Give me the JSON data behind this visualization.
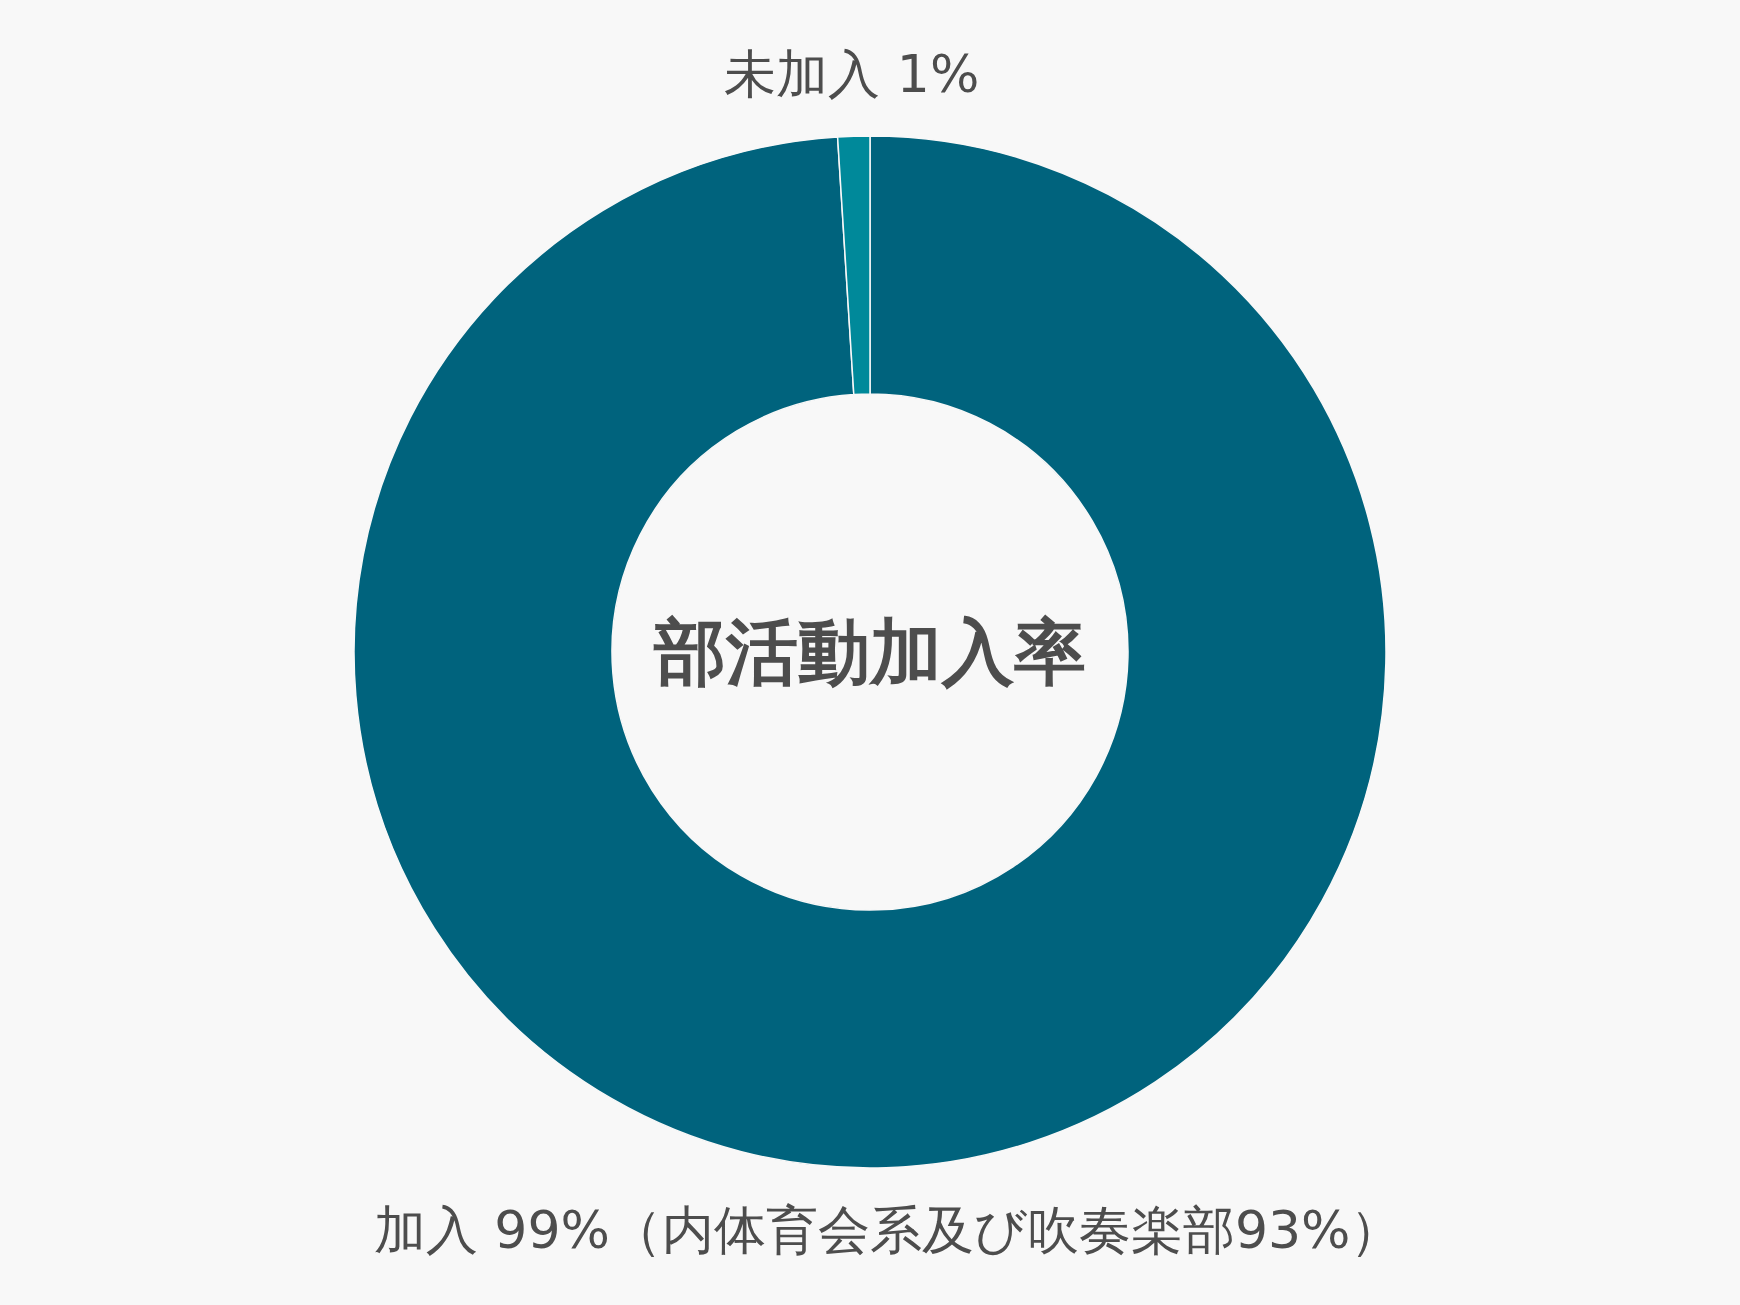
{
  "chart_data": {
    "type": "donut",
    "title": "部活動加入率",
    "categories": [
      "加入",
      "未加入"
    ],
    "values": [
      99,
      1
    ],
    "colors": [
      "#00637d",
      "#00899a"
    ],
    "value_labels": [
      "99%（内体育会系及び吹奏楽部93%）",
      "1%"
    ]
  }
}
